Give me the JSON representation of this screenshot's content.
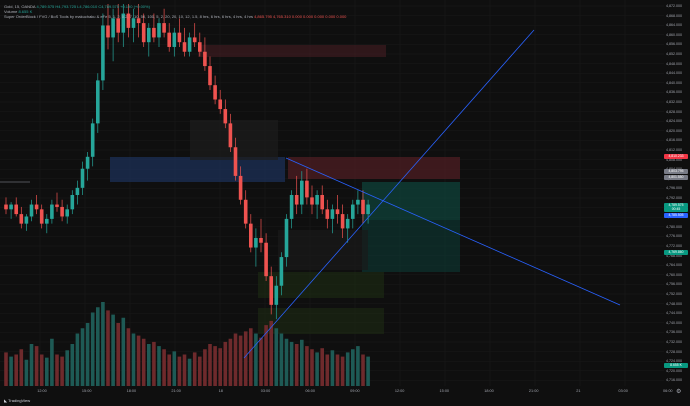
{
  "header": {
    "symbol_line": "Gold, 15, OANDA",
    "ohlc": "4,789.575 H4,793.725 L4,786.010 C4,789.575",
    "change": "+0.190 (+0.00%)",
    "volume_label": "Volume",
    "volume_value": "8.655 K",
    "indicator_name": "Super OrderBlock / FVG / BoS Tools by makuchaku & eFe",
    "indicator_params": "5, 1, 2, 0.2, 7, 10, 50, 100, 5, 2, 20, 20, 10, 12, 1.5, 8 hrs, 6 hrs, 6 hrs, 4 hrs, 4 hrs",
    "indicator_values": "4,865.795  4,765.310  0.000  0.000  0.000  0.000  0.000"
  },
  "y_axis": {
    "ticks": [
      "4,872.000",
      "4,868.000",
      "4,864.000",
      "4,860.000",
      "4,856.000",
      "4,852.000",
      "4,848.000",
      "4,844.000",
      "4,840.000",
      "4,836.000",
      "4,832.000",
      "4,828.000",
      "4,824.000",
      "4,820.000",
      "4,816.000",
      "4,812.000",
      "4,808.000",
      "4,804.000",
      "4,800.000",
      "4,796.000",
      "4,792.000",
      "4,788.000",
      "4,784.000",
      "4,780.000",
      "4,776.000",
      "4,772.000",
      "4,768.000",
      "4,764.000",
      "4,760.000",
      "4,756.000",
      "4,752.000",
      "4,748.000",
      "4,744.000",
      "4,740.000",
      "4,736.000",
      "4,732.000",
      "4,728.000",
      "4,724.000",
      "4,720.000",
      "4,716.000"
    ],
    "badges": [
      {
        "text": "4,810.233",
        "color": "#f23645",
        "at": 4810.2
      },
      {
        "text": "4,803.795",
        "color": "#787b86",
        "at": 4803.8
      },
      {
        "text": "4,801.550",
        "color": "#787b86",
        "at": 4801.5
      },
      {
        "text": "4,789.575",
        "color": "#089981",
        "at": 4789.6
      },
      {
        "text": "00:45",
        "color": "#089981",
        "at": 4787.8
      },
      {
        "text": "4,785.505",
        "color": "#2962ff",
        "at": 4785.5
      },
      {
        "text": "4,769.860",
        "color": "#089981",
        "at": 4769.9
      },
      {
        "text": "8.655 K",
        "color": "#089981",
        "at": 4722.6
      }
    ]
  },
  "x_axis": {
    "ticks": [
      "12:00",
      "15:00",
      "18:00",
      "21:00",
      "18",
      "03:00",
      "06:00",
      "09:00",
      "12:00",
      "15:00",
      "18:00",
      "21:00",
      "21",
      "03:00",
      "06:00"
    ]
  },
  "footer": {
    "logo": "TradingView"
  },
  "colors": {
    "up": "#26a69a",
    "down": "#ef5350",
    "line": "#2962ff",
    "bg": "#0f0f0f"
  },
  "chart_data": {
    "type": "candlestick",
    "ylim": [
      4714,
      4874
    ],
    "candles": [
      [
        4790,
        4793,
        4786,
        4788
      ],
      [
        4788,
        4791,
        4784,
        4790
      ],
      [
        4790,
        4793,
        4785,
        4786
      ],
      [
        4786,
        4789,
        4780,
        4782
      ],
      [
        4782,
        4786,
        4779,
        4785
      ],
      [
        4785,
        4792,
        4783,
        4790
      ],
      [
        4790,
        4794,
        4786,
        4788
      ],
      [
        4788,
        4790,
        4780,
        4782
      ],
      [
        4782,
        4786,
        4778,
        4784
      ],
      [
        4784,
        4792,
        4782,
        4790
      ],
      [
        4790,
        4795,
        4787,
        4789
      ],
      [
        4789,
        4792,
        4783,
        4785
      ],
      [
        4785,
        4790,
        4782,
        4788
      ],
      [
        4788,
        4796,
        4786,
        4794
      ],
      [
        4794,
        4800,
        4790,
        4797
      ],
      [
        4797,
        4808,
        4794,
        4805
      ],
      [
        4805,
        4812,
        4800,
        4810
      ],
      [
        4810,
        4826,
        4806,
        4824
      ],
      [
        4824,
        4845,
        4820,
        4842
      ],
      [
        4842,
        4870,
        4838,
        4865
      ],
      [
        4865,
        4874,
        4855,
        4860
      ],
      [
        4860,
        4872,
        4850,
        4868
      ],
      [
        4868,
        4874,
        4858,
        4862
      ],
      [
        4862,
        4874,
        4856,
        4870
      ],
      [
        4870,
        4874,
        4860,
        4864
      ],
      [
        4864,
        4872,
        4858,
        4868
      ],
      [
        4868,
        4874,
        4860,
        4866
      ],
      [
        4866,
        4870,
        4856,
        4858
      ],
      [
        4858,
        4866,
        4852,
        4864
      ],
      [
        4864,
        4870,
        4858,
        4860
      ],
      [
        4860,
        4868,
        4856,
        4866
      ],
      [
        4866,
        4872,
        4860,
        4862
      ],
      [
        4862,
        4866,
        4854,
        4856
      ],
      [
        4856,
        4864,
        4852,
        4862
      ],
      [
        4862,
        4868,
        4856,
        4858
      ],
      [
        4858,
        4864,
        4852,
        4854
      ],
      [
        4854,
        4862,
        4852,
        4860
      ],
      [
        4860,
        4866,
        4856,
        4858
      ],
      [
        4858,
        4862,
        4852,
        4854
      ],
      [
        4854,
        4860,
        4846,
        4848
      ],
      [
        4848,
        4852,
        4838,
        4840
      ],
      [
        4840,
        4844,
        4832,
        4834
      ],
      [
        4834,
        4838,
        4828,
        4830
      ],
      [
        4830,
        4834,
        4822,
        4824
      ],
      [
        4824,
        4828,
        4812,
        4814
      ],
      [
        4814,
        4818,
        4800,
        4802
      ],
      [
        4802,
        4806,
        4790,
        4792
      ],
      [
        4792,
        4796,
        4780,
        4782
      ],
      [
        4782,
        4786,
        4770,
        4772
      ],
      [
        4772,
        4780,
        4764,
        4776
      ],
      [
        4776,
        4784,
        4770,
        4774
      ],
      [
        4774,
        4778,
        4758,
        4760
      ],
      [
        4760,
        4764,
        4744,
        4748
      ],
      [
        4748,
        4760,
        4742,
        4756
      ],
      [
        4756,
        4770,
        4752,
        4768
      ],
      [
        4768,
        4786,
        4764,
        4784
      ],
      [
        4784,
        4796,
        4780,
        4794
      ],
      [
        4794,
        4802,
        4786,
        4790
      ],
      [
        4790,
        4804,
        4786,
        4800
      ],
      [
        4800,
        4805,
        4790,
        4793
      ],
      [
        4793,
        4798,
        4786,
        4790
      ],
      [
        4790,
        4796,
        4784,
        4794
      ],
      [
        4794,
        4798,
        4786,
        4788
      ],
      [
        4788,
        4792,
        4780,
        4784
      ],
      [
        4784,
        4790,
        4778,
        4788
      ],
      [
        4788,
        4794,
        4782,
        4786
      ],
      [
        4786,
        4790,
        4776,
        4780
      ],
      [
        4780,
        4786,
        4774,
        4784
      ],
      [
        4784,
        4792,
        4780,
        4790
      ],
      [
        4790,
        4796,
        4786,
        4792
      ],
      [
        4792,
        4796,
        4782,
        4786
      ],
      [
        4786,
        4792,
        4782,
        4790
      ]
    ],
    "volumes": [
      32,
      28,
      30,
      35,
      25,
      40,
      38,
      30,
      27,
      45,
      30,
      28,
      34,
      40,
      50,
      55,
      60,
      70,
      75,
      80,
      72,
      68,
      60,
      65,
      55,
      50,
      48,
      45,
      40,
      42,
      38,
      35,
      30,
      33,
      28,
      30,
      26,
      32,
      28,
      35,
      40,
      38,
      36,
      42,
      45,
      50,
      48,
      52,
      55,
      50,
      46,
      58,
      62,
      55,
      50,
      45,
      42,
      40,
      44,
      38,
      35,
      32,
      36,
      30,
      34,
      30,
      28,
      32,
      35,
      38,
      30,
      28
    ]
  }
}
